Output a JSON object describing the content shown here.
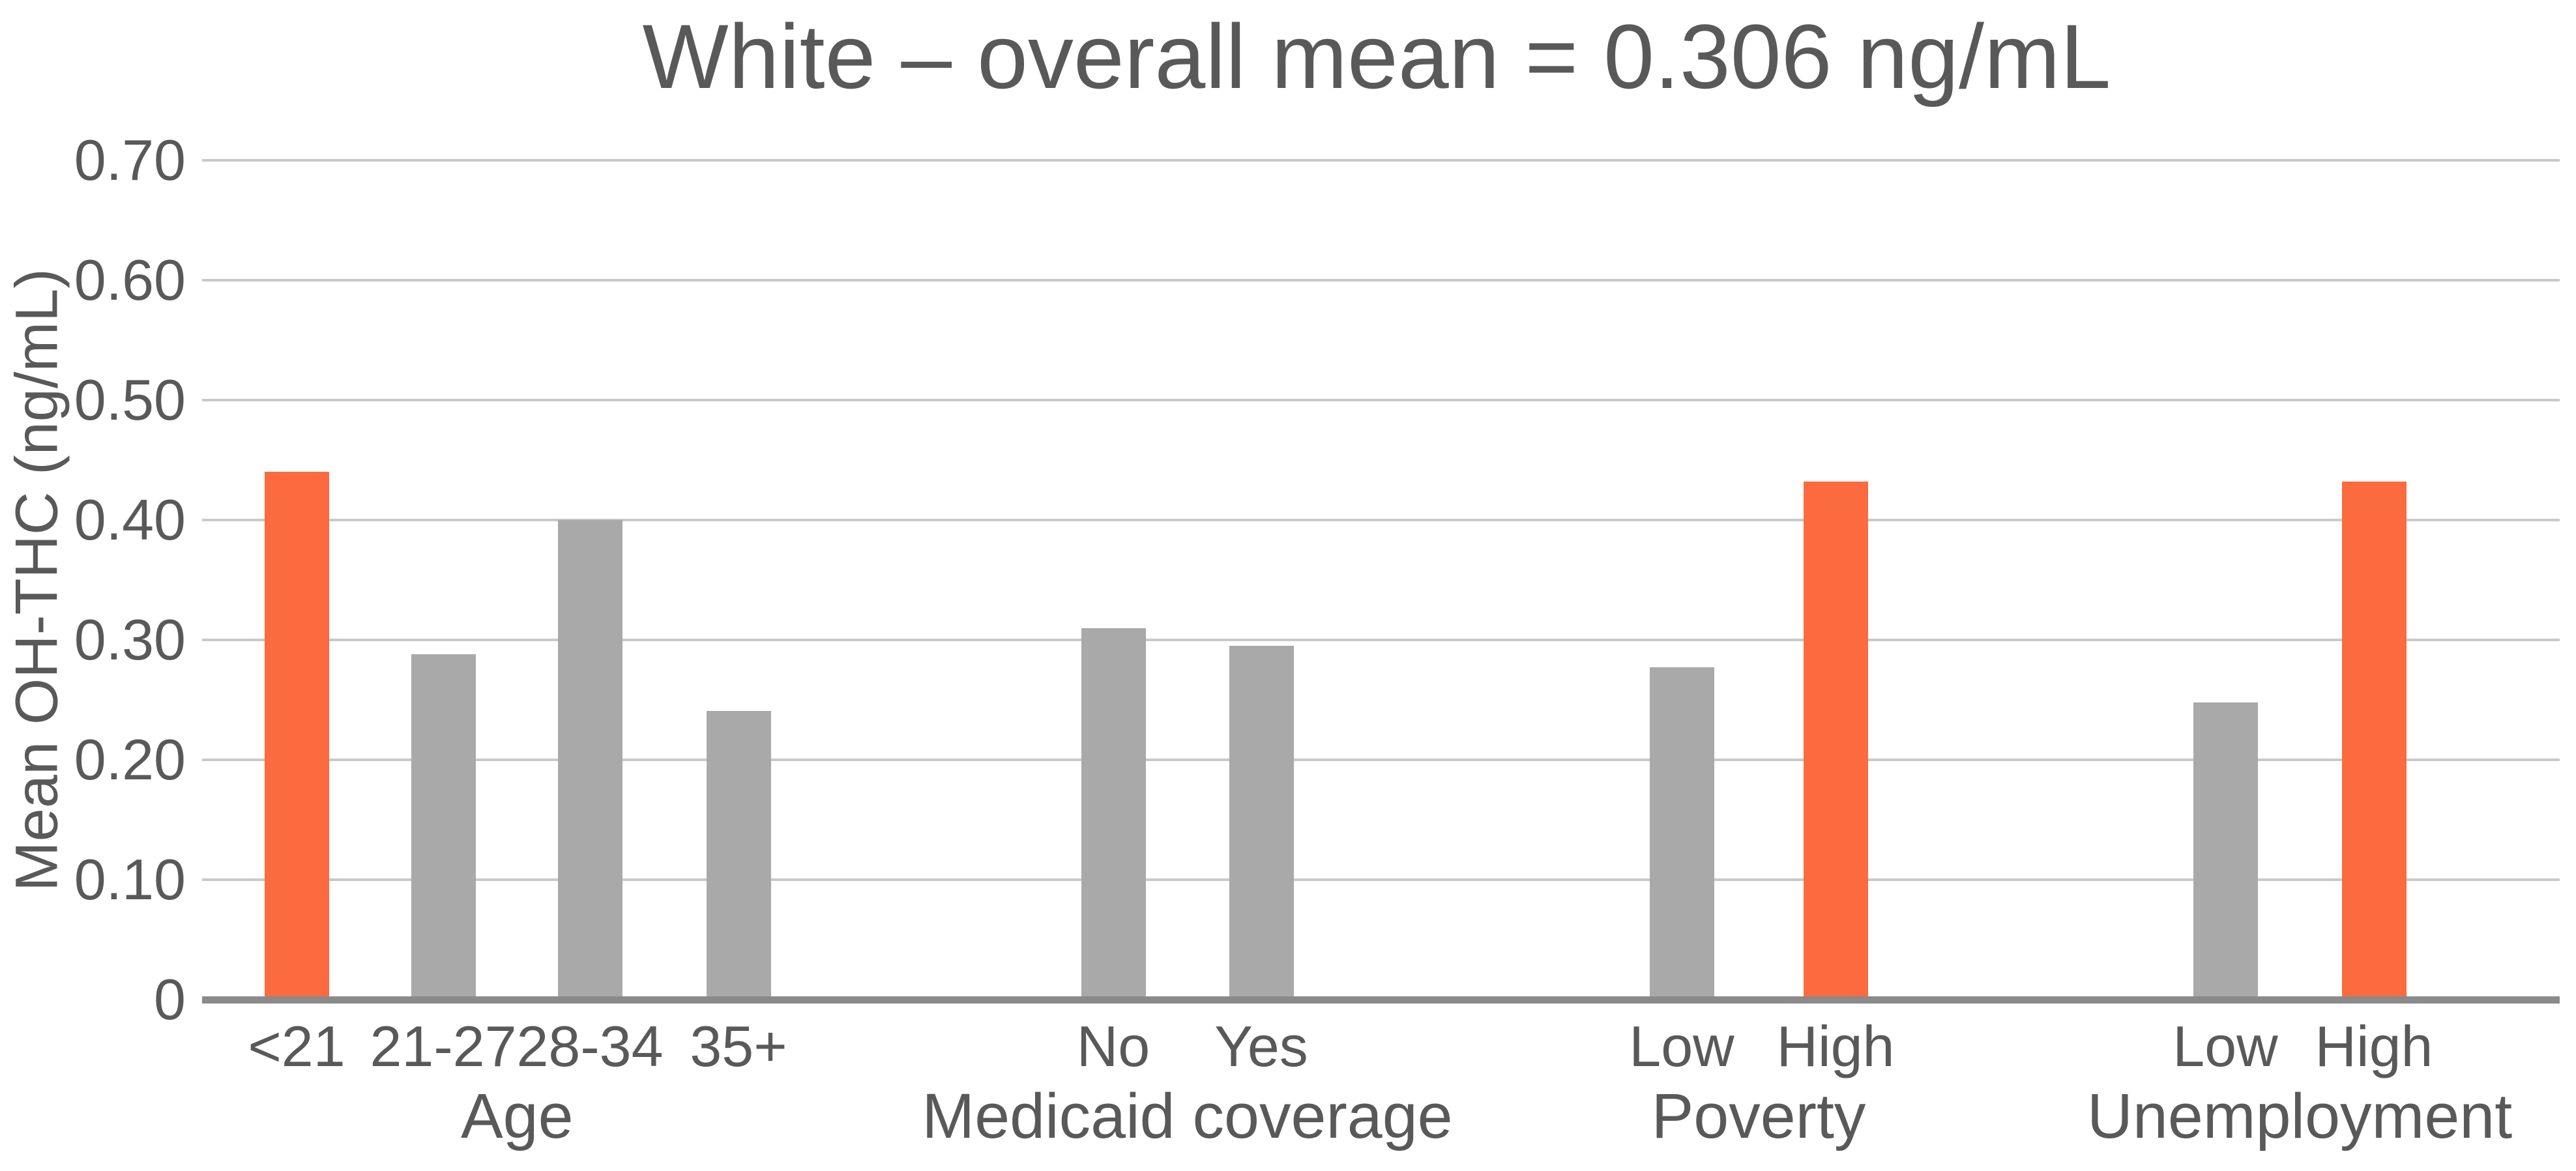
{
  "title": "White – overall mean = 0.306 ng/mL",
  "chart_data": {
    "type": "bar",
    "title": "White – overall mean = 0.306 ng/mL",
    "xlabel": "",
    "ylabel": "Mean OH-THC (ng/mL)",
    "ylim": [
      0,
      0.7
    ],
    "ytick_step": 0.1,
    "ytick_labels": [
      "0",
      "0.10",
      "0.20",
      "0.30",
      "0.40",
      "0.50",
      "0.60",
      "0.70"
    ],
    "grid": true,
    "legend": false,
    "overall_mean_ng_per_mL": 0.306,
    "groups": [
      {
        "label": "Age",
        "categories": [
          "<21",
          "21-27",
          "28-34",
          "35+"
        ],
        "values": [
          0.44,
          0.288,
          0.4,
          0.241
        ],
        "highlighted": [
          true,
          false,
          false,
          false
        ]
      },
      {
        "label": "Medicaid coverage",
        "categories": [
          "No",
          "Yes"
        ],
        "values": [
          0.31,
          0.295
        ],
        "highlighted": [
          false,
          false
        ]
      },
      {
        "label": "Poverty",
        "categories": [
          "Low",
          "High"
        ],
        "values": [
          0.277,
          0.432
        ],
        "highlighted": [
          false,
          true
        ]
      },
      {
        "label": "Unemployment",
        "categories": [
          "Low",
          "High"
        ],
        "values": [
          0.248,
          0.432
        ],
        "highlighted": [
          false,
          true
        ]
      }
    ],
    "colors": {
      "bar_default": "#A9A9A9",
      "bar_highlight": "#FB6B3F",
      "gridline": "#C9C9C9",
      "axis_line": "#8A8A8A",
      "text": "#595959",
      "background": "#FFFFFF"
    }
  }
}
